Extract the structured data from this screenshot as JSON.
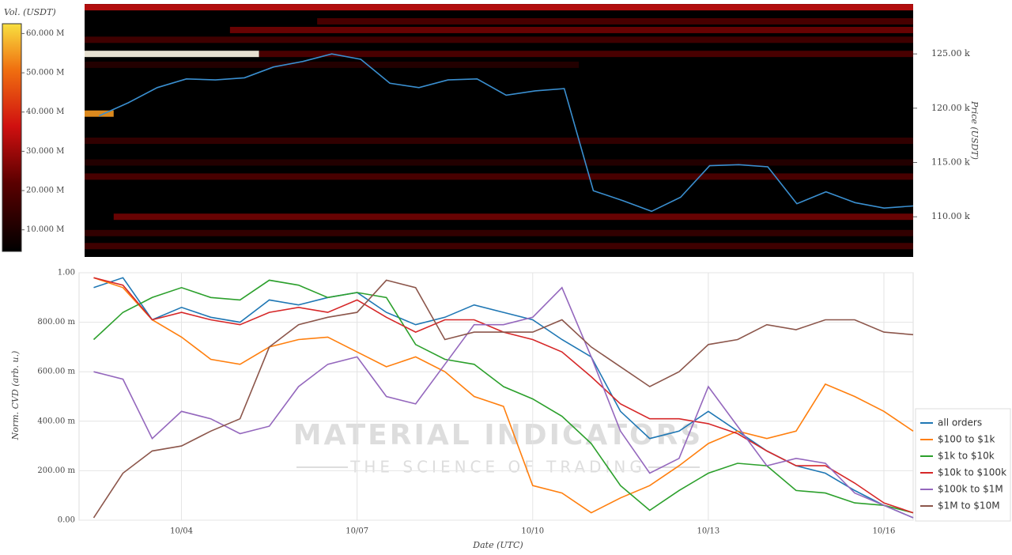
{
  "chart_data": [
    {
      "type": "heatmap",
      "colorbar_label": "Vol. (USDT)",
      "y_label": "Price (USDT)",
      "categories": [
        null,
        null,
        null,
        null,
        null,
        null,
        null,
        null,
        null,
        null,
        null,
        null,
        null,
        null,
        null,
        null,
        null,
        null,
        null,
        null,
        null,
        null,
        null,
        null,
        null,
        null,
        null,
        null,
        null
      ],
      "ylim": [
        106300,
        129600
      ],
      "yticks": [
        {
          "value": 110000,
          "label": "110.00 k"
        },
        {
          "value": 115000,
          "label": "115.00 k"
        },
        {
          "value": 120000,
          "label": "120.00 k"
        },
        {
          "value": 125000,
          "label": "125.00 k"
        }
      ],
      "clim": [
        4500000,
        62500000
      ],
      "cticks": [
        {
          "value": 10000000,
          "label": "10.000 M"
        },
        {
          "value": 20000000,
          "label": "20.000 M"
        },
        {
          "value": 30000000,
          "label": "30.000 M"
        },
        {
          "value": 40000000,
          "label": "40.000 M"
        },
        {
          "value": 50000000,
          "label": "50.000 M"
        },
        {
          "value": 60000000,
          "label": "60.000 M"
        }
      ],
      "levels": [
        {
          "price": 129300,
          "volume": 35000000,
          "start": 0,
          "end": 28
        },
        {
          "price": 128000,
          "volume": 20000000,
          "start": 8,
          "end": 28
        },
        {
          "price": 127200,
          "volume": 25000000,
          "start": 5,
          "end": 28
        },
        {
          "price": 126300,
          "volume": 18000000,
          "start": 0,
          "end": 28
        },
        {
          "price": 125000,
          "volume": 65000000,
          "start": 0,
          "end": 5
        },
        {
          "price": 125000,
          "volume": 20000000,
          "start": 6,
          "end": 28
        },
        {
          "price": 124000,
          "volume": 12000000,
          "start": 0,
          "end": 16
        },
        {
          "price": 119500,
          "volume": 55000000,
          "start": 0,
          "end": 0
        },
        {
          "price": 117000,
          "volume": 15000000,
          "start": 0,
          "end": 28
        },
        {
          "price": 115000,
          "volume": 12000000,
          "start": 0,
          "end": 28
        },
        {
          "price": 113700,
          "volume": 20000000,
          "start": 0,
          "end": 28
        },
        {
          "price": 110000,
          "volume": 25000000,
          "start": 1,
          "end": 28
        },
        {
          "price": 108500,
          "volume": 15000000,
          "start": 0,
          "end": 28
        },
        {
          "price": 107300,
          "volume": 18000000,
          "start": 0,
          "end": 28
        }
      ],
      "series": [
        {
          "color": "#3a8fd0",
          "values": [
            119300,
            120500,
            121900,
            122700,
            122600,
            122800,
            123800,
            124300,
            125000,
            124500,
            122300,
            121900,
            122600,
            122700,
            121200,
            121600,
            121800,
            112400,
            111500,
            110500,
            111800,
            114700,
            114800,
            114600,
            111200,
            112300,
            111300,
            110800,
            111000
          ]
        }
      ]
    },
    {
      "type": "line",
      "x_label": "Date (UTC)",
      "y_label": "Norm. CVD (arb. u.)",
      "categories": [
        null,
        null,
        null,
        "10/04",
        null,
        null,
        null,
        null,
        null,
        "10/07",
        null,
        null,
        null,
        null,
        null,
        "10/10",
        null,
        null,
        null,
        null,
        null,
        "10/13",
        null,
        null,
        null,
        null,
        null,
        "10/16",
        null
      ],
      "ylim": [
        0,
        1
      ],
      "yticks": [
        {
          "value": 0,
          "label": "0.00"
        },
        {
          "value": 0.2,
          "label": "200.00 m"
        },
        {
          "value": 0.4,
          "label": "400.00 m"
        },
        {
          "value": 0.6,
          "label": "600.00 m"
        },
        {
          "value": 0.8,
          "label": "800.00 m"
        },
        {
          "value": 1,
          "label": "1.00"
        }
      ],
      "grid": true,
      "legend": "right",
      "watermark": {
        "title": "MATERIAL INDICATORS",
        "subtitle": "THE SCIENCE OF TRADING"
      },
      "series": [
        {
          "name": "all orders",
          "color": "#1f77b4",
          "values": [
            0.94,
            0.98,
            0.81,
            0.86,
            0.82,
            0.8,
            0.89,
            0.87,
            0.9,
            0.92,
            0.84,
            0.79,
            0.82,
            0.87,
            0.84,
            0.81,
            0.73,
            0.66,
            0.44,
            0.33,
            0.36,
            0.44,
            0.36,
            0.28,
            0.22,
            0.19,
            0.12,
            0.06,
            0.01
          ]
        },
        {
          "name": "$100 to $1k",
          "color": "#ff7f0e",
          "values": [
            0.98,
            0.94,
            0.81,
            0.74,
            0.65,
            0.63,
            0.7,
            0.73,
            0.74,
            0.68,
            0.62,
            0.66,
            0.6,
            0.5,
            0.46,
            0.14,
            0.11,
            0.03,
            0.09,
            0.14,
            0.22,
            0.31,
            0.36,
            0.33,
            0.36,
            0.55,
            0.5,
            0.44,
            0.36
          ]
        },
        {
          "name": "$1k to $10k",
          "color": "#2ca02c",
          "values": [
            0.73,
            0.84,
            0.9,
            0.94,
            0.9,
            0.89,
            0.97,
            0.95,
            0.9,
            0.92,
            0.9,
            0.71,
            0.65,
            0.63,
            0.54,
            0.49,
            0.42,
            0.31,
            0.14,
            0.04,
            0.12,
            0.19,
            0.23,
            0.22,
            0.12,
            0.11,
            0.07,
            0.06,
            0.03
          ]
        },
        {
          "name": "$10k to $100k",
          "color": "#d62728",
          "values": [
            0.98,
            0.95,
            0.81,
            0.84,
            0.81,
            0.79,
            0.84,
            0.86,
            0.84,
            0.89,
            0.82,
            0.76,
            0.81,
            0.81,
            0.76,
            0.73,
            0.68,
            0.58,
            0.47,
            0.41,
            0.41,
            0.39,
            0.35,
            0.28,
            0.22,
            0.22,
            0.15,
            0.07,
            0.03
          ]
        },
        {
          "name": "$100k to $1M",
          "color": "#9467bd",
          "values": [
            0.6,
            0.57,
            0.33,
            0.44,
            0.41,
            0.35,
            0.38,
            0.54,
            0.63,
            0.66,
            0.5,
            0.47,
            0.63,
            0.79,
            0.79,
            0.82,
            0.94,
            0.66,
            0.36,
            0.19,
            0.25,
            0.54,
            0.38,
            0.22,
            0.25,
            0.23,
            0.11,
            0.06,
            0.01
          ]
        },
        {
          "name": "$1M to $10M",
          "color": "#8c564b",
          "values": [
            0.01,
            0.19,
            0.28,
            0.3,
            0.36,
            0.41,
            0.7,
            0.79,
            0.82,
            0.84,
            0.97,
            0.94,
            0.73,
            0.76,
            0.76,
            0.76,
            0.81,
            0.7,
            0.62,
            0.54,
            0.6,
            0.71,
            0.73,
            0.79,
            0.77,
            0.81,
            0.81,
            0.76,
            0.75
          ]
        }
      ]
    }
  ]
}
